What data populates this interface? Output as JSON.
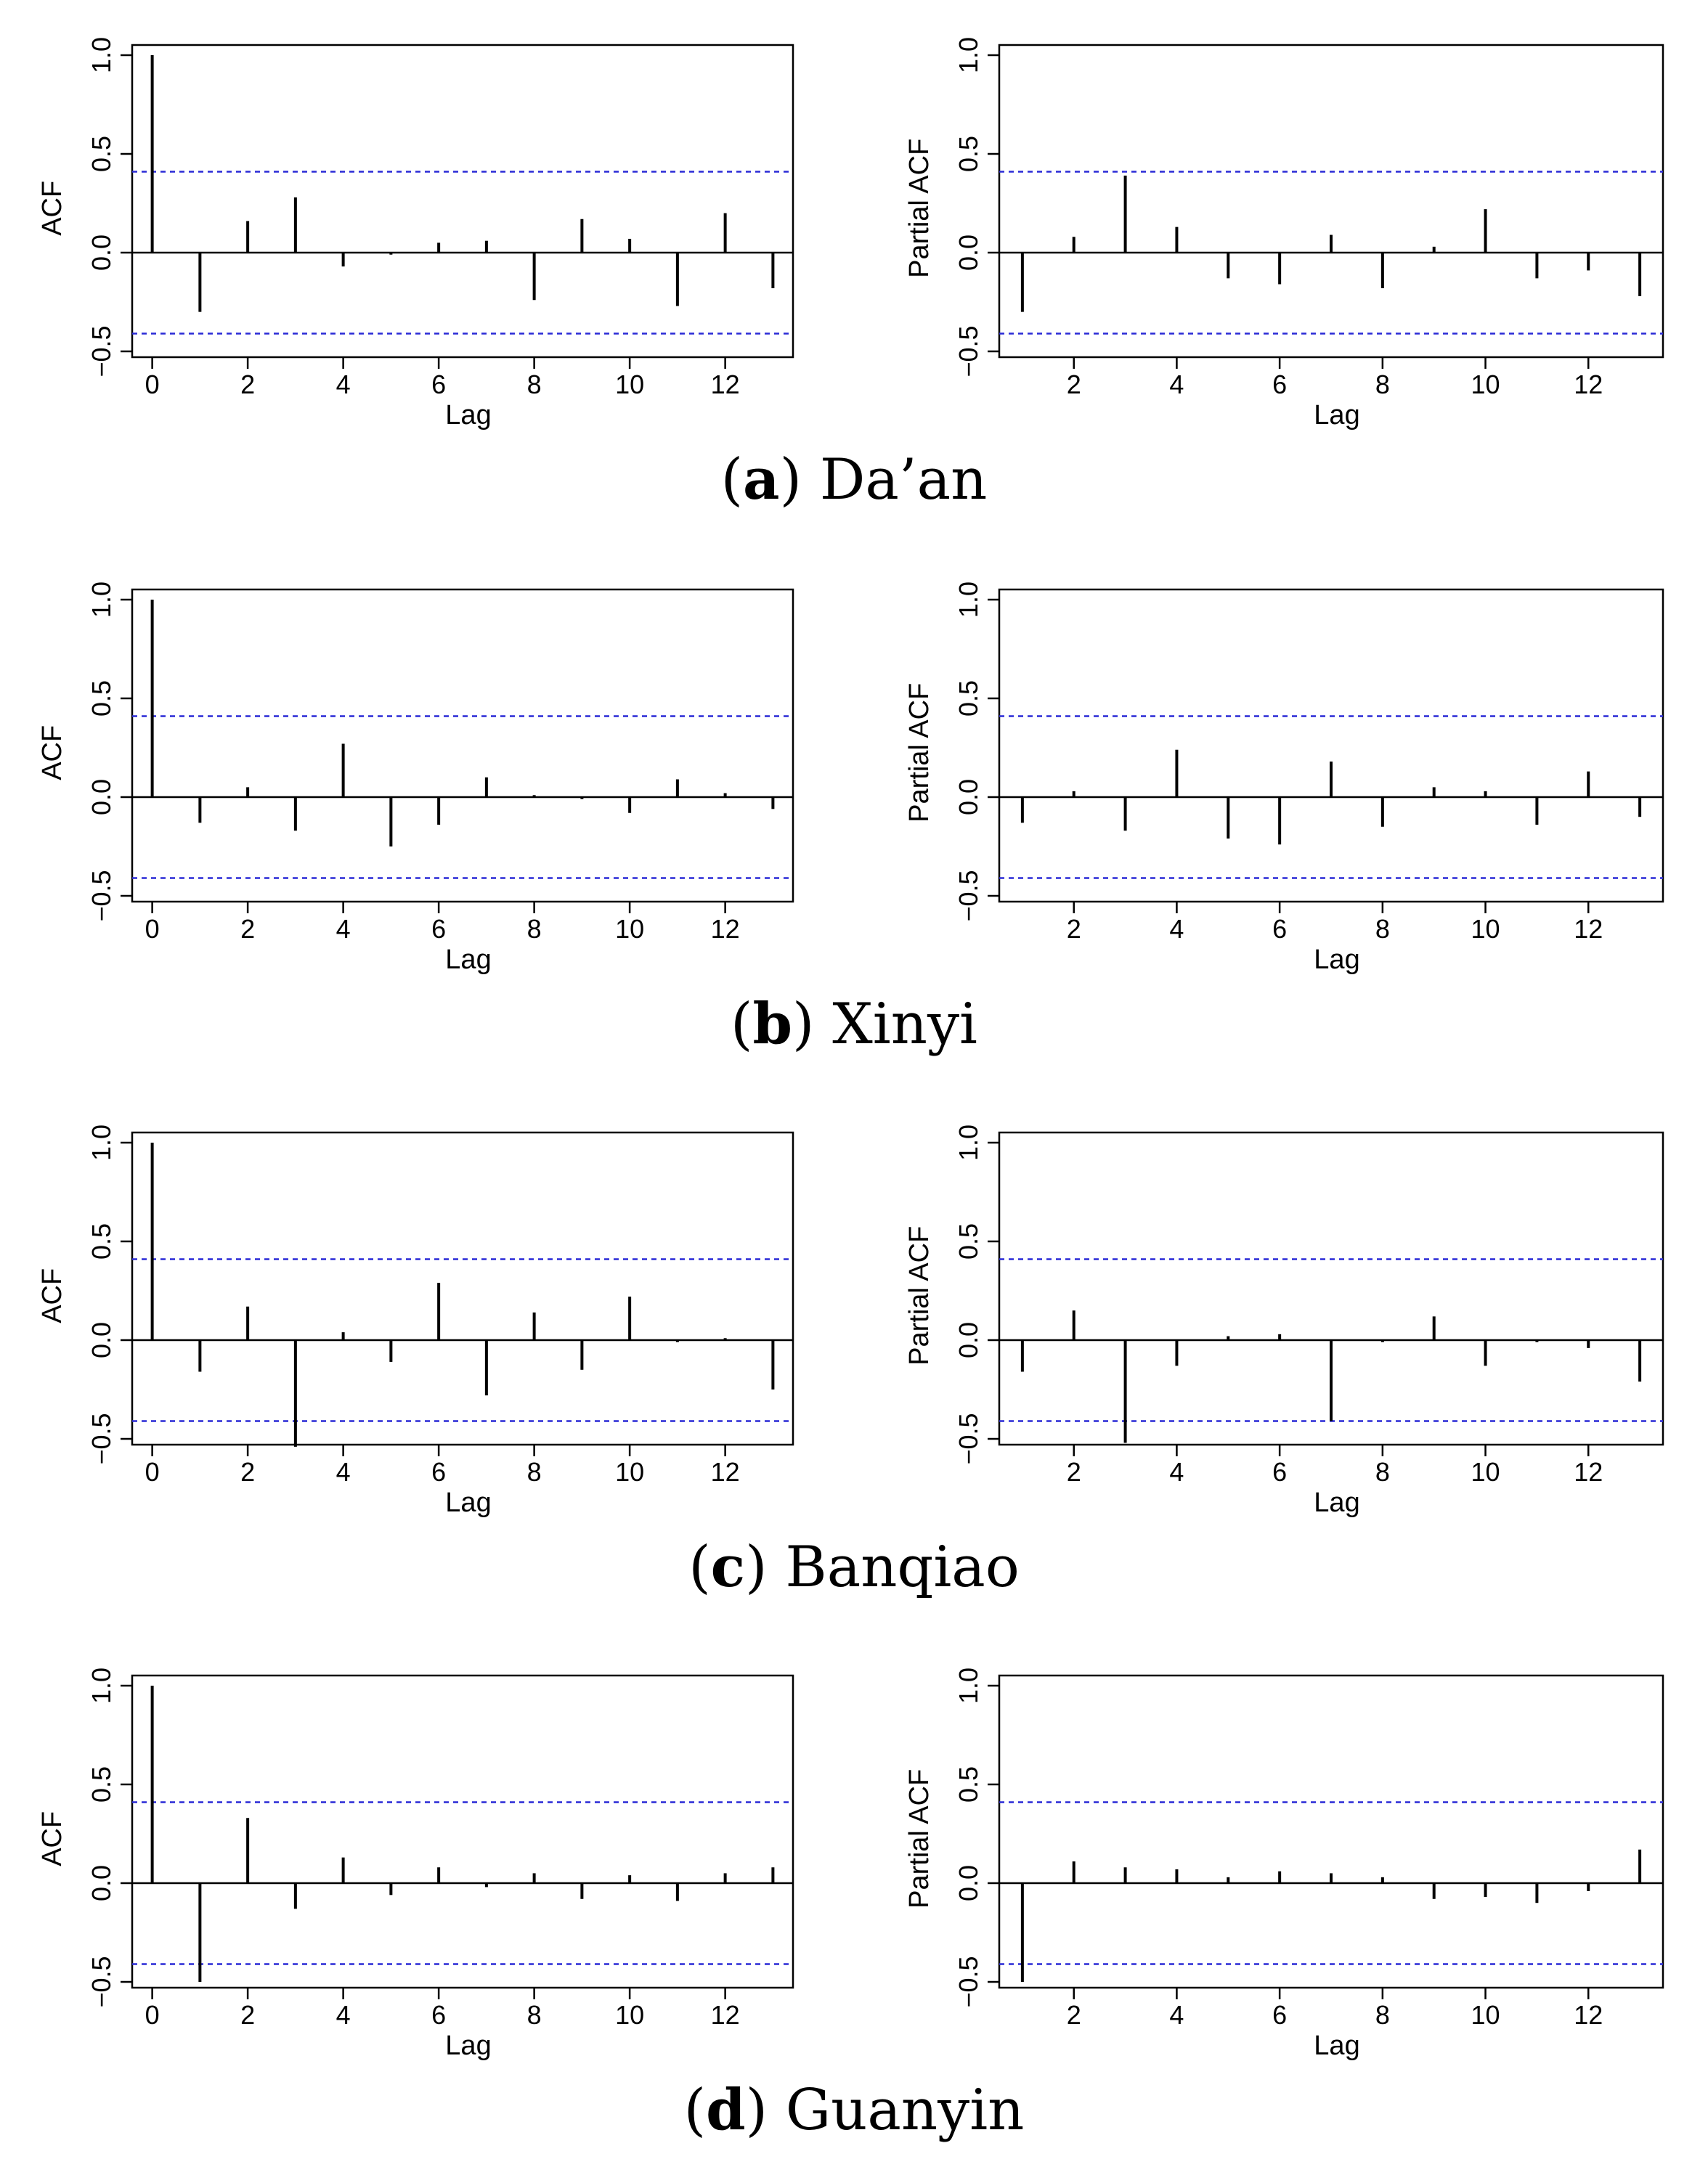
{
  "chart_data": [
    {
      "panel": "a",
      "station": "Da’an",
      "charts": [
        {
          "type": "bar",
          "ylabel": "ACF",
          "xlabel": "Lag",
          "ylim": [
            -0.5,
            1.0
          ],
          "yticks": [
            "−0.5",
            "0.0",
            "0.5",
            "1.0"
          ],
          "xticks": [
            "0",
            "2",
            "4",
            "6",
            "8",
            "10",
            "12"
          ],
          "conf_limit": 0.41,
          "lags": [
            0,
            1,
            2,
            3,
            4,
            5,
            6,
            7,
            8,
            9,
            10,
            11,
            12,
            13
          ],
          "values": [
            1.0,
            -0.3,
            0.16,
            0.28,
            -0.07,
            -0.01,
            0.05,
            0.06,
            -0.24,
            0.17,
            0.07,
            -0.27,
            0.2,
            -0.18
          ]
        },
        {
          "type": "bar",
          "ylabel": "Partial ACF",
          "xlabel": "Lag",
          "ylim": [
            -0.5,
            1.0
          ],
          "yticks": [
            "−0.5",
            "0.0",
            "0.5",
            "1.0"
          ],
          "xticks": [
            "2",
            "4",
            "6",
            "8",
            "10",
            "12"
          ],
          "conf_limit": 0.41,
          "lags": [
            1,
            2,
            3,
            4,
            5,
            6,
            7,
            8,
            9,
            10,
            11,
            12,
            13
          ],
          "values": [
            -0.3,
            0.08,
            0.39,
            0.13,
            -0.13,
            -0.16,
            0.09,
            -0.18,
            0.03,
            0.22,
            -0.13,
            -0.09,
            -0.22
          ]
        }
      ]
    },
    {
      "panel": "b",
      "station": "Xinyi",
      "charts": [
        {
          "type": "bar",
          "ylabel": "ACF",
          "xlabel": "Lag",
          "ylim": [
            -0.5,
            1.0
          ],
          "yticks": [
            "−0.5",
            "0.0",
            "0.5",
            "1.0"
          ],
          "xticks": [
            "0",
            "2",
            "4",
            "6",
            "8",
            "10",
            "12"
          ],
          "conf_limit": 0.41,
          "lags": [
            0,
            1,
            2,
            3,
            4,
            5,
            6,
            7,
            8,
            9,
            10,
            11,
            12,
            13
          ],
          "values": [
            1.0,
            -0.13,
            0.05,
            -0.17,
            0.27,
            -0.25,
            -0.14,
            0.1,
            0.01,
            -0.01,
            -0.08,
            0.09,
            0.02,
            -0.06
          ]
        },
        {
          "type": "bar",
          "ylabel": "Partial ACF",
          "xlabel": "Lag",
          "ylim": [
            -0.5,
            1.0
          ],
          "yticks": [
            "−0.5",
            "0.0",
            "0.5",
            "1.0"
          ],
          "xticks": [
            "2",
            "4",
            "6",
            "8",
            "10",
            "12"
          ],
          "conf_limit": 0.41,
          "lags": [
            1,
            2,
            3,
            4,
            5,
            6,
            7,
            8,
            9,
            10,
            11,
            12,
            13
          ],
          "values": [
            -0.13,
            0.03,
            -0.17,
            0.24,
            -0.21,
            -0.24,
            0.18,
            -0.15,
            0.05,
            0.03,
            -0.14,
            0.13,
            -0.1
          ]
        }
      ]
    },
    {
      "panel": "c",
      "station": "Banqiao",
      "charts": [
        {
          "type": "bar",
          "ylabel": "ACF",
          "xlabel": "Lag",
          "ylim": [
            -0.5,
            1.0
          ],
          "yticks": [
            "−0.5",
            "0.0",
            "0.5",
            "1.0"
          ],
          "xticks": [
            "0",
            "2",
            "4",
            "6",
            "8",
            "10",
            "12"
          ],
          "conf_limit": 0.41,
          "lags": [
            0,
            1,
            2,
            3,
            4,
            5,
            6,
            7,
            8,
            9,
            10,
            11,
            12,
            13
          ],
          "values": [
            1.0,
            -0.16,
            0.17,
            -0.54,
            0.04,
            -0.11,
            0.29,
            -0.28,
            0.14,
            -0.15,
            0.22,
            -0.01,
            0.01,
            -0.25
          ]
        },
        {
          "type": "bar",
          "ylabel": "Partial ACF",
          "xlabel": "Lag",
          "ylim": [
            -0.5,
            1.0
          ],
          "yticks": [
            "−0.5",
            "0.0",
            "0.5",
            "1.0"
          ],
          "xticks": [
            "2",
            "4",
            "6",
            "8",
            "10",
            "12"
          ],
          "conf_limit": 0.41,
          "lags": [
            1,
            2,
            3,
            4,
            5,
            6,
            7,
            8,
            9,
            10,
            11,
            12,
            13
          ],
          "values": [
            -0.16,
            0.15,
            -0.52,
            -0.13,
            0.02,
            0.03,
            -0.41,
            -0.01,
            0.12,
            -0.13,
            -0.01,
            -0.04,
            -0.21
          ]
        }
      ]
    },
    {
      "panel": "d",
      "station": "Guanyin",
      "charts": [
        {
          "type": "bar",
          "ylabel": "ACF",
          "xlabel": "Lag",
          "ylim": [
            -0.5,
            1.0
          ],
          "yticks": [
            "−0.5",
            "0.0",
            "0.5",
            "1.0"
          ],
          "xticks": [
            "0",
            "2",
            "4",
            "6",
            "8",
            "10",
            "12"
          ],
          "conf_limit": 0.41,
          "lags": [
            0,
            1,
            2,
            3,
            4,
            5,
            6,
            7,
            8,
            9,
            10,
            11,
            12,
            13
          ],
          "values": [
            1.0,
            -0.5,
            0.33,
            -0.13,
            0.13,
            -0.06,
            0.08,
            -0.02,
            0.05,
            -0.08,
            0.04,
            -0.09,
            0.05,
            0.08
          ]
        },
        {
          "type": "bar",
          "ylabel": "Partial ACF",
          "xlabel": "Lag",
          "ylim": [
            -0.5,
            1.0
          ],
          "yticks": [
            "−0.5",
            "0.0",
            "0.5",
            "1.0"
          ],
          "xticks": [
            "2",
            "4",
            "6",
            "8",
            "10",
            "12"
          ],
          "conf_limit": 0.41,
          "lags": [
            1,
            2,
            3,
            4,
            5,
            6,
            7,
            8,
            9,
            10,
            11,
            12,
            13
          ],
          "values": [
            -0.5,
            0.11,
            0.08,
            0.07,
            0.03,
            0.06,
            0.05,
            0.03,
            -0.08,
            -0.07,
            -0.1,
            -0.04,
            0.17
          ]
        }
      ]
    }
  ],
  "colors": {
    "confidence_line": "#2a2ad6",
    "bar": "#000000",
    "axis": "#000000"
  }
}
